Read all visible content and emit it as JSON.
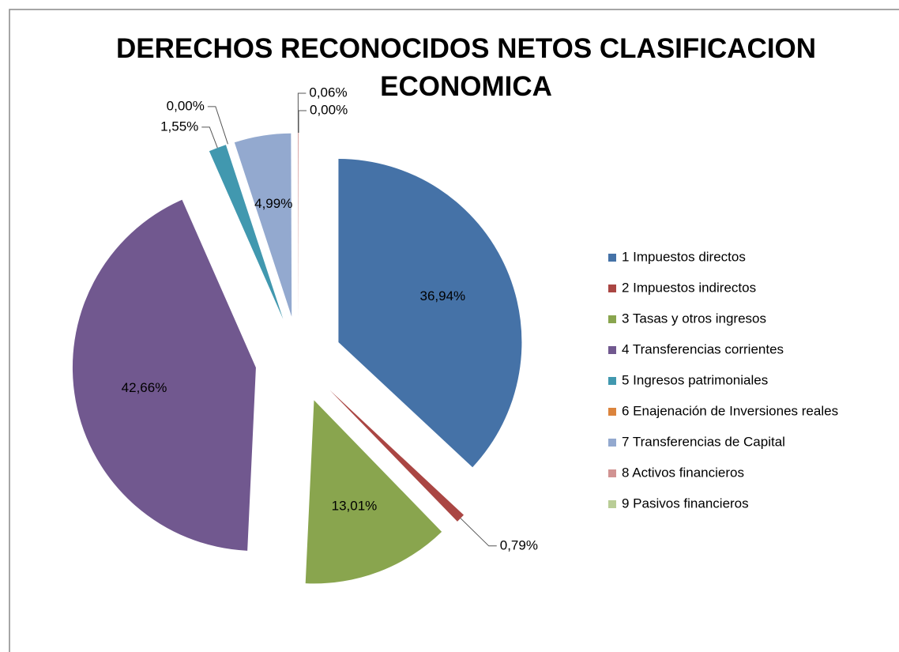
{
  "chart_data": {
    "type": "pie",
    "title": "DERECHOS RECONOCIDOS NETOS CLASIFICACION ECONOMICA",
    "categories": [
      "1 Impuestos directos",
      "2 Impuestos indirectos",
      "3 Tasas y otros ingresos",
      "4 Transferencias corrientes",
      "5 Ingresos patrimoniales",
      "6 Enajenación de Inversiones reales",
      "7 Transferencias de Capital",
      "8 Activos financieros",
      "9 Pasivos financieros"
    ],
    "values": [
      36.94,
      0.79,
      13.01,
      42.66,
      1.55,
      0.0,
      4.99,
      0.06,
      0.0
    ],
    "value_labels": [
      "36,94%",
      "0,79%",
      "13,01%",
      "42,66%",
      "1,55%",
      "0,00%",
      "4,99%",
      "0,06%",
      "0,00%"
    ],
    "colors": [
      "#4572a7",
      "#aa4643",
      "#89a54e",
      "#71588f",
      "#4198af",
      "#db843d",
      "#93a9cf",
      "#d19392",
      "#b9cd96"
    ],
    "legend": "right"
  }
}
